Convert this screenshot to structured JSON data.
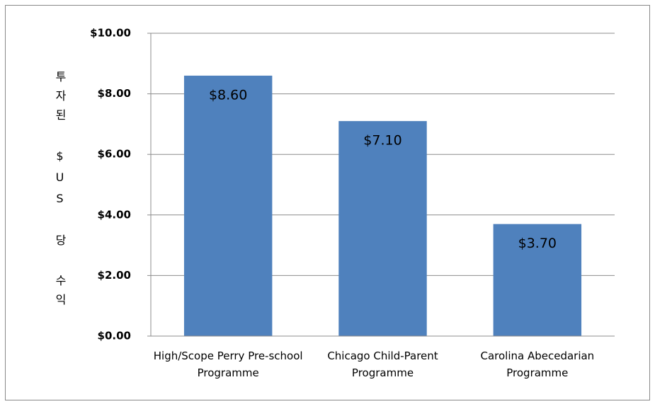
{
  "chart_data": {
    "type": "bar",
    "y_label": "투자된 $US 당 수익",
    "categories": [
      "High/Scope Perry Pre-school Programme",
      "Chicago Child-Parent Programme",
      "Carolina Abecedarian Programme"
    ],
    "values": [
      8.6,
      7.1,
      3.7
    ],
    "value_labels": [
      "$8.60",
      "$7.10",
      "$3.70"
    ],
    "color": "#4f81bd",
    "ylim": [
      0,
      10
    ],
    "yticks": [
      {
        "value": 0,
        "label": "$0.00"
      },
      {
        "value": 2,
        "label": "$2.00"
      },
      {
        "value": 4,
        "label": "$4.00"
      },
      {
        "value": 6,
        "label": "$6.00"
      },
      {
        "value": 8,
        "label": "$8.00"
      },
      {
        "value": 10,
        "label": "$10.00"
      }
    ],
    "grid": true
  }
}
